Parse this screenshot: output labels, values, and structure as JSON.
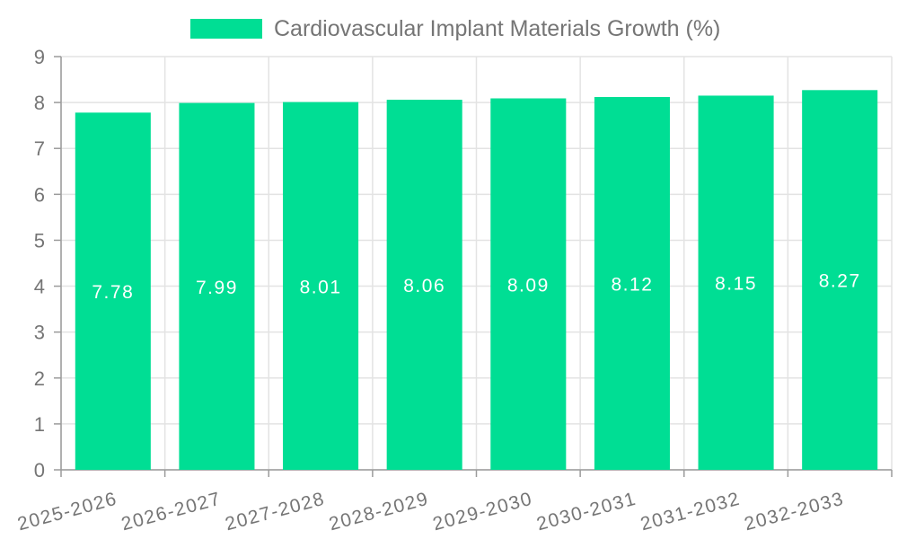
{
  "chart_data": {
    "type": "bar",
    "title": "Cardiovascular Implant Materials Growth (%)",
    "legend": {
      "label": "Cardiovascular Implant Materials Growth (%)",
      "position": "top-center"
    },
    "categories": [
      "2025-2026",
      "2026-2027",
      "2027-2028",
      "2028-2029",
      "2029-2030",
      "2030-2031",
      "2031-2032",
      "2032-2033"
    ],
    "series": [
      {
        "name": "Cardiovascular Implant Materials Growth (%)",
        "values": [
          7.78,
          7.99,
          8.01,
          8.06,
          8.09,
          8.12,
          8.15,
          8.27
        ]
      }
    ],
    "value_labels": [
      "7.78",
      "7.99",
      "8.01",
      "8.06",
      "8.09",
      "8.12",
      "8.15",
      "8.27"
    ],
    "xlabel": "",
    "ylabel": "",
    "ylim": [
      0,
      9
    ],
    "y_ticks": [
      0,
      1,
      2,
      3,
      4,
      5,
      6,
      7,
      8,
      9
    ],
    "grid": true,
    "colors": {
      "bar": "#00DE94",
      "grid": "#E3E3E3",
      "axis": "#9B9B9B",
      "text": "#757575",
      "value_label": "#FFFFFF",
      "background": "#FFFFFF"
    }
  }
}
